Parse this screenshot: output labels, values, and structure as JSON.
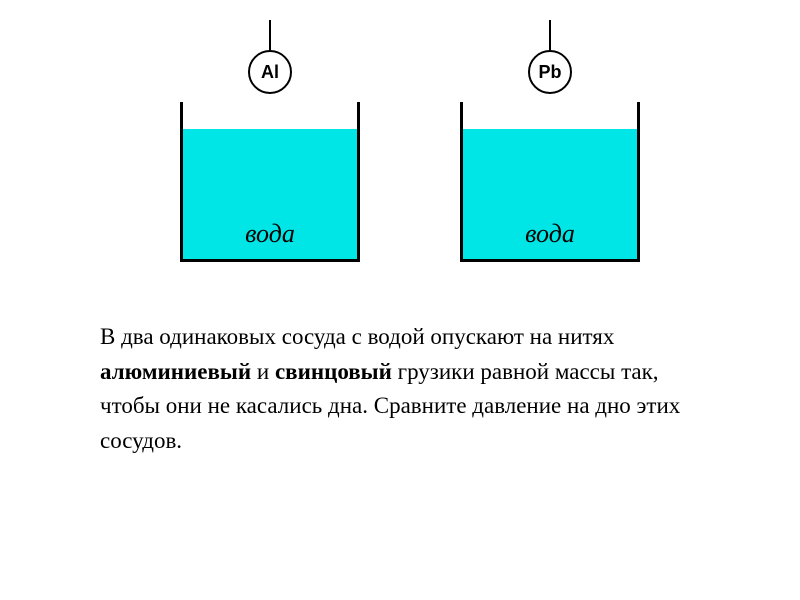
{
  "diagram": {
    "vessels": [
      {
        "ball_label": "Al",
        "liquid_label": "вода",
        "water_color": "#00e5e5",
        "vessel_border_color": "#000000",
        "ball_border_color": "#000000",
        "thread_color": "#000000"
      },
      {
        "ball_label": "Pb",
        "liquid_label": "вода",
        "water_color": "#00e5e5",
        "vessel_border_color": "#000000",
        "ball_border_color": "#000000",
        "thread_color": "#000000"
      }
    ],
    "ball_diameter": 44,
    "thread_length": 32,
    "vessel_width": 180,
    "vessel_height": 160,
    "water_height": 130
  },
  "text": {
    "part1": "В два одинаковых сосуда с водой опускают на нитях ",
    "bold1": "алюминиевый",
    "part2": " и ",
    "bold2": "свинцовый",
    "part3": " грузики равной массы так, чтобы они не касались дна. Сравните давление на дно этих сосудов."
  },
  "style": {
    "background_color": "#ffffff",
    "text_color": "#000000",
    "text_fontsize": 23,
    "ball_label_fontsize": 18,
    "water_label_fontsize": 26
  }
}
